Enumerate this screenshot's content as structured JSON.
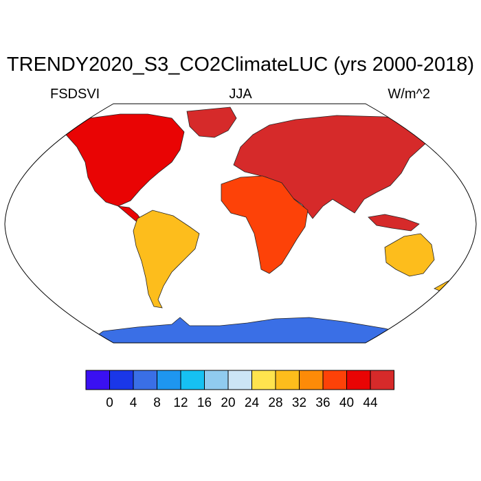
{
  "title": "TRENDY2020_S3_CO2ClimateLUC (yrs 2000-2018)",
  "variable": "FSDSVI",
  "season": "JJA",
  "units": "W/m^2",
  "colorbar": {
    "colors": [
      "#3a10f2",
      "#1a37e8",
      "#3a6fe6",
      "#1e96f0",
      "#16c1f2",
      "#90cbef",
      "#cce5f6",
      "#ffe44e",
      "#fdbd1c",
      "#fd8b08",
      "#fd4208",
      "#e90404",
      "#d62a2a"
    ],
    "tick_labels": [
      "0",
      "4",
      "8",
      "12",
      "16",
      "20",
      "24",
      "28",
      "32",
      "36",
      "40",
      "44"
    ]
  },
  "legend_values": [
    0,
    4,
    8,
    12,
    16,
    20,
    24,
    28,
    32,
    36,
    40,
    44
  ],
  "map_regions": [
    {
      "name": "north-america",
      "value": 42
    },
    {
      "name": "eurasia",
      "value": 44
    },
    {
      "name": "africa",
      "value": 36
    },
    {
      "name": "south-america",
      "value": 30
    },
    {
      "name": "australia",
      "value": 28
    },
    {
      "name": "antarctica",
      "value": 4
    },
    {
      "name": "greenland",
      "value": 44
    }
  ]
}
